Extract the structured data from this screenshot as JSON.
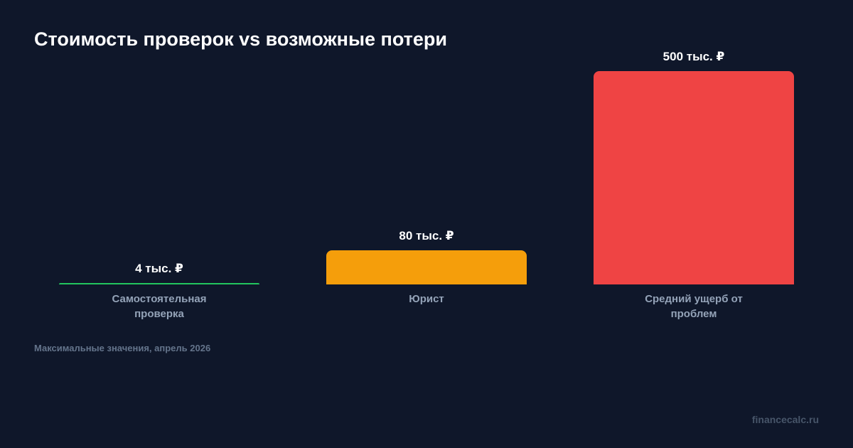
{
  "chart_data": {
    "type": "bar",
    "title": "Стоимость проверок vs возможные потери",
    "categories": [
      "Самостоятельная проверка",
      "Юрист",
      "Средний ущерб от проблем"
    ],
    "values": [
      4,
      80,
      500
    ],
    "value_labels": [
      "4 тыс. ₽",
      "80 тыс. ₽",
      "500 тыс. ₽"
    ],
    "colors": [
      "#22c55e",
      "#f59e0b",
      "#ef4444"
    ],
    "note": "Максимальные значения, апрель 2026",
    "source": "financecalc.ru"
  }
}
